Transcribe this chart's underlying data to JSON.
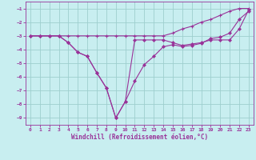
{
  "background_color": "#c8eef0",
  "grid_color": "#9ecece",
  "line_color": "#993399",
  "x": [
    0,
    1,
    2,
    3,
    4,
    5,
    6,
    7,
    8,
    9,
    10,
    11,
    12,
    13,
    14,
    15,
    16,
    17,
    18,
    19,
    20,
    21,
    22,
    23
  ],
  "line1": [
    -3.0,
    -3.0,
    -3.0,
    -3.0,
    -3.0,
    -3.0,
    -3.0,
    -3.0,
    -3.0,
    -3.0,
    -3.0,
    -3.0,
    -3.0,
    -3.0,
    -3.0,
    -2.8,
    -2.5,
    -2.3,
    -2.0,
    -1.8,
    -1.5,
    -1.2,
    -1.0,
    -1.0
  ],
  "line2": [
    -3.0,
    -3.0,
    -3.0,
    -3.0,
    -3.5,
    -4.2,
    -4.5,
    -5.7,
    -6.8,
    -9.0,
    -7.8,
    -6.3,
    -5.1,
    -4.5,
    -3.8,
    -3.65,
    -3.78,
    -3.7,
    -3.55,
    -3.2,
    -3.1,
    -2.8,
    -1.8,
    -1.2
  ],
  "line3": [
    -3.0,
    -3.0,
    -3.0,
    -3.0,
    -3.5,
    -4.2,
    -4.5,
    -5.7,
    -6.8,
    -9.0,
    -7.8,
    -3.3,
    -3.3,
    -3.3,
    -3.3,
    -3.5,
    -3.7,
    -3.6,
    -3.5,
    -3.3,
    -3.3,
    -3.3,
    -2.5,
    -1.1
  ],
  "ylim": [
    -9.5,
    -0.5
  ],
  "xlim": [
    -0.5,
    23.5
  ],
  "yticks": [
    -9,
    -8,
    -7,
    -6,
    -5,
    -4,
    -3,
    -2,
    -1
  ],
  "xticks": [
    0,
    1,
    2,
    3,
    4,
    5,
    6,
    7,
    8,
    9,
    10,
    11,
    12,
    13,
    14,
    15,
    16,
    17,
    18,
    19,
    20,
    21,
    22,
    23
  ],
  "xlabel": "Windchill (Refroidissement éolien,°C)"
}
